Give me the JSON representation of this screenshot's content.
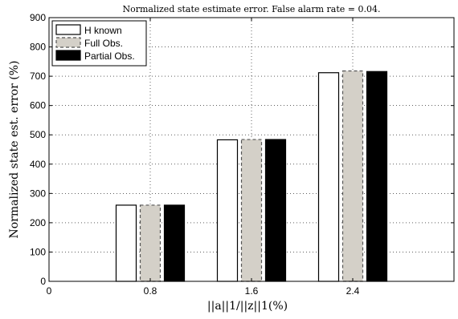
{
  "chart_data": {
    "type": "bar",
    "title": "Normalized state estimate error. False alarm rate = 0.04.",
    "xlabel": "||a||1/||z||1(%)",
    "ylabel": "Normalized state est. error (%)",
    "x": [
      0.8,
      1.6,
      2.4
    ],
    "categories": [
      "0.8",
      "1.6",
      "2.4"
    ],
    "xlim": [
      0,
      3.2
    ],
    "xticks": [
      "0",
      "0.8",
      "1.6",
      "2.4"
    ],
    "xtick_values": [
      0,
      0.8,
      1.6,
      2.4
    ],
    "ylim": [
      0,
      900
    ],
    "yticks": [
      0,
      100,
      200,
      300,
      400,
      500,
      600,
      700,
      800,
      900
    ],
    "grid": true,
    "legend_position": "top-left",
    "series": [
      {
        "name": "H known",
        "values": [
          260,
          483,
          712
        ],
        "color": "#ffffff",
        "edge": "#000000",
        "dash": false
      },
      {
        "name": "Full Obs.",
        "values": [
          260,
          484,
          718
        ],
        "color": "#d4d0c8",
        "edge": "#555555",
        "dash": true
      },
      {
        "name": "Partial Obs.",
        "values": [
          260,
          484,
          716
        ],
        "color": "#000000",
        "edge": "#000000",
        "dash": false
      }
    ]
  }
}
